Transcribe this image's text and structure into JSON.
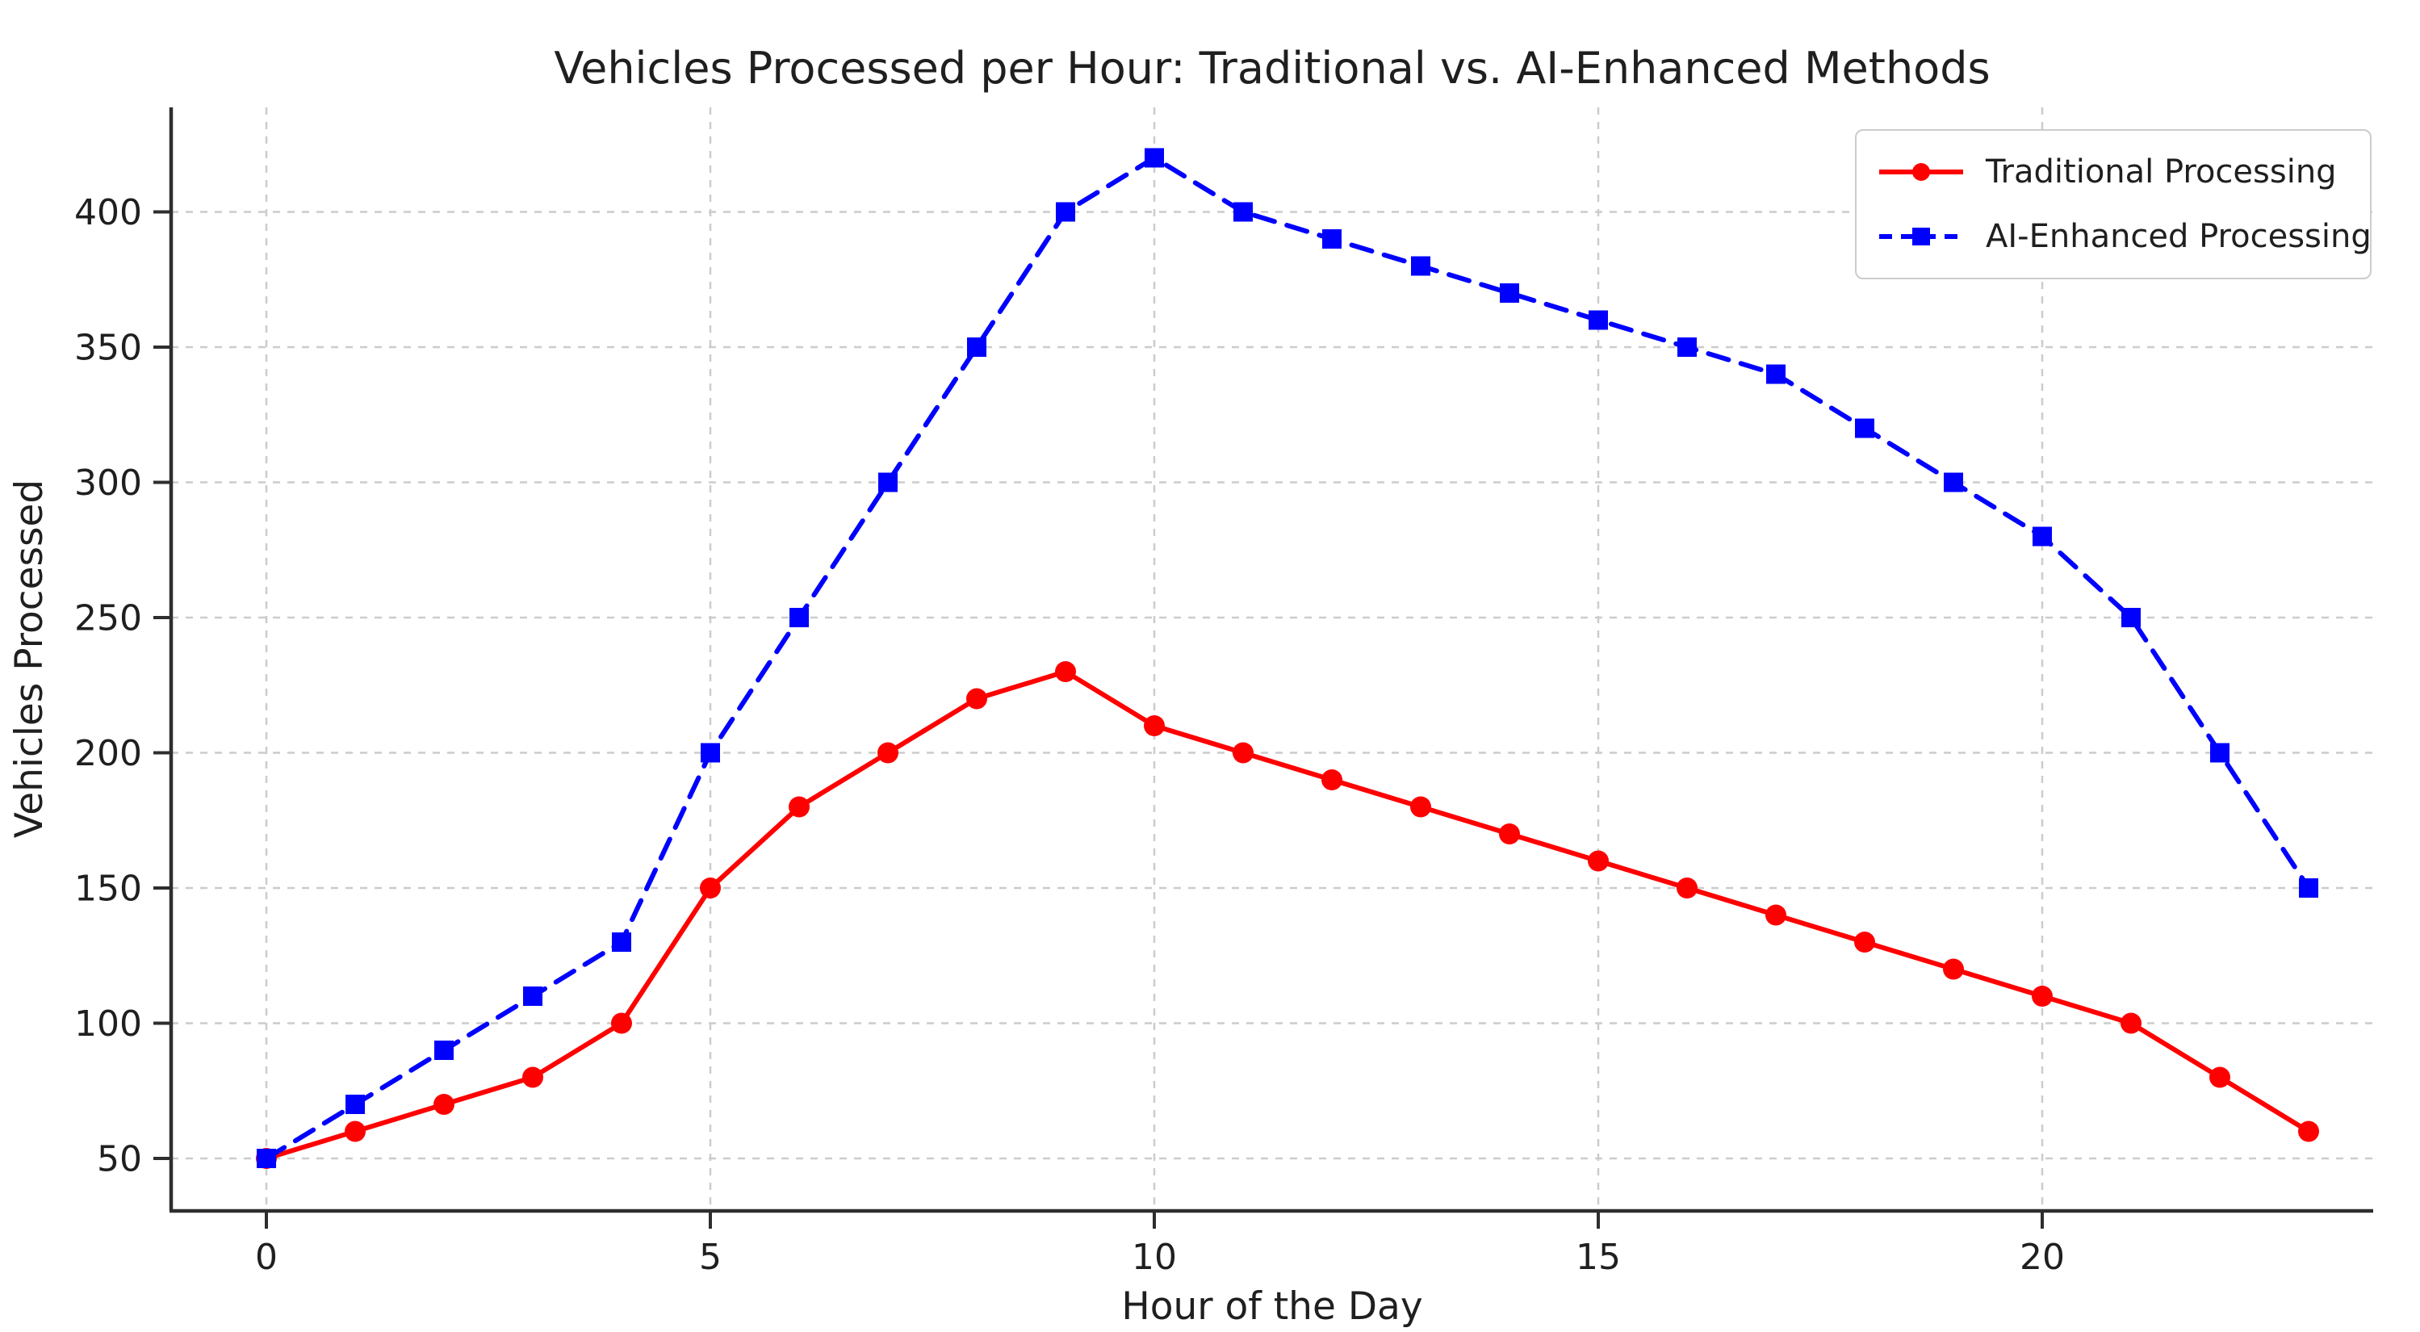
{
  "chart_data": {
    "type": "line",
    "title": "Vehicles Processed per Hour: Traditional vs. AI-Enhanced Methods",
    "xlabel": "Hour of the Day",
    "ylabel": "Vehicles Processed",
    "x": [
      0,
      1,
      2,
      3,
      4,
      5,
      6,
      7,
      8,
      9,
      10,
      11,
      12,
      13,
      14,
      15,
      16,
      17,
      18,
      19,
      20,
      21,
      22,
      23
    ],
    "series": [
      {
        "name": "Traditional Processing",
        "color": "#ff0000",
        "linestyle": "solid",
        "marker": "circle",
        "values": [
          50,
          60,
          70,
          80,
          100,
          150,
          180,
          200,
          220,
          230,
          210,
          200,
          190,
          180,
          170,
          160,
          150,
          140,
          130,
          120,
          110,
          100,
          80,
          60
        ]
      },
      {
        "name": "AI-Enhanced Processing",
        "color": "#0000ff",
        "linestyle": "dashed",
        "marker": "square",
        "values": [
          50,
          70,
          90,
          110,
          130,
          200,
          250,
          300,
          350,
          400,
          420,
          400,
          390,
          380,
          370,
          360,
          350,
          340,
          320,
          300,
          280,
          250,
          200,
          150
        ]
      }
    ],
    "xticks": [
      0,
      5,
      10,
      15,
      20
    ],
    "yticks": [
      50,
      100,
      150,
      200,
      250,
      300,
      350,
      400
    ],
    "xlim": [
      -1.1,
      23.7
    ],
    "ylim": [
      29,
      438
    ],
    "grid": true,
    "grid_style": "dashed",
    "legend_position": "upper right"
  },
  "colors": {
    "text": "#1f1f1f",
    "axis": "#2e2e2e",
    "grid": "#cccccc",
    "legend_border": "#cccccc",
    "background": "#ffffff",
    "series_red": "#ff0000",
    "series_blue": "#0000ff"
  }
}
